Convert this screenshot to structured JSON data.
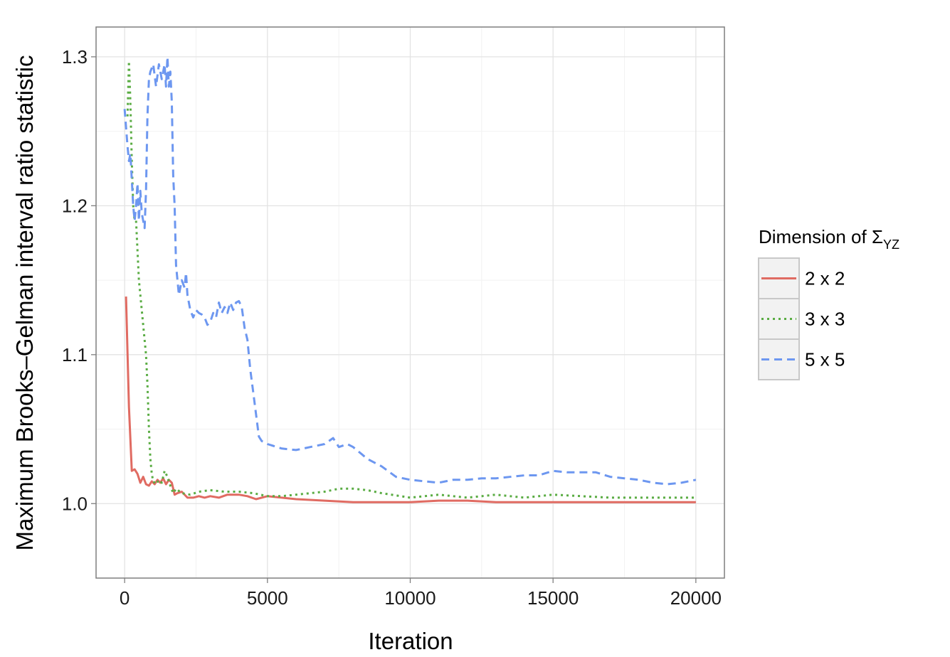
{
  "chart_data": {
    "type": "line",
    "title": "",
    "xlabel": "Iteration",
    "ylabel": "Maximum Brooks–Gelman interval ratio statistic",
    "xlim": [
      -1000,
      21000
    ],
    "ylim": [
      0.95,
      1.32
    ],
    "x_ticks": [
      0,
      5000,
      10000,
      15000,
      20000
    ],
    "x_tick_labels": [
      "0",
      "5000",
      "10000",
      "15000",
      "20000"
    ],
    "y_ticks": [
      1.0,
      1.1,
      1.2,
      1.3
    ],
    "y_tick_labels": [
      "1.0",
      "1.1",
      "1.2",
      "1.3"
    ],
    "grid": true,
    "legend": {
      "title_main": "Dimension of Σ",
      "title_sub": "YZ",
      "placement": "right"
    },
    "series": [
      {
        "name": "2 x 2",
        "color": "#e06b62",
        "dash": "solid",
        "x": [
          50,
          150,
          250,
          350,
          450,
          550,
          650,
          750,
          850,
          950,
          1050,
          1150,
          1250,
          1350,
          1450,
          1550,
          1650,
          1750,
          1850,
          2000,
          2200,
          2400,
          2600,
          2800,
          3000,
          3300,
          3600,
          4000,
          4300,
          4600,
          5000,
          5500,
          6000,
          7000,
          8000,
          9000,
          10000,
          11000,
          12000,
          13000,
          14000,
          15000,
          16000,
          17000,
          18000,
          19000,
          20000
        ],
        "y": [
          1.139,
          1.065,
          1.022,
          1.023,
          1.02,
          1.014,
          1.018,
          1.013,
          1.012,
          1.015,
          1.013,
          1.016,
          1.014,
          1.017,
          1.013,
          1.016,
          1.014,
          1.006,
          1.007,
          1.008,
          1.004,
          1.004,
          1.005,
          1.004,
          1.005,
          1.004,
          1.006,
          1.006,
          1.005,
          1.003,
          1.005,
          1.004,
          1.003,
          1.002,
          1.001,
          1.001,
          1.001,
          1.002,
          1.002,
          1.001,
          1.001,
          1.001,
          1.001,
          1.001,
          1.001,
          1.001,
          1.001
        ]
      },
      {
        "name": "3 x 3",
        "color": "#5aac43",
        "dash": "dotted",
        "x": [
          100,
          150,
          200,
          250,
          300,
          350,
          400,
          450,
          500,
          550,
          600,
          650,
          700,
          750,
          800,
          850,
          900,
          950,
          1000,
          1100,
          1200,
          1300,
          1400,
          1500,
          1600,
          1700,
          1800,
          2000,
          2300,
          2600,
          3000,
          3500,
          4000,
          4500,
          5000,
          5500,
          6000,
          6500,
          7000,
          7500,
          8000,
          8500,
          9000,
          10000,
          11000,
          12000,
          13000,
          14000,
          15000,
          16000,
          17000,
          18000,
          19000,
          20000
        ],
        "y": [
          1.26,
          1.297,
          1.27,
          1.23,
          1.2,
          1.19,
          1.19,
          1.17,
          1.15,
          1.14,
          1.13,
          1.12,
          1.11,
          1.1,
          1.08,
          1.05,
          1.03,
          1.02,
          1.015,
          1.013,
          1.016,
          1.014,
          1.022,
          1.018,
          1.012,
          1.007,
          1.01,
          1.007,
          1.006,
          1.008,
          1.009,
          1.008,
          1.008,
          1.007,
          1.005,
          1.005,
          1.006,
          1.007,
          1.008,
          1.01,
          1.01,
          1.009,
          1.007,
          1.004,
          1.006,
          1.004,
          1.006,
          1.004,
          1.006,
          1.005,
          1.004,
          1.004,
          1.004,
          1.004
        ]
      },
      {
        "name": "5 x 5",
        "color": "#6d97f0",
        "dash": "dashed",
        "x": [
          0,
          100,
          150,
          200,
          300,
          350,
          400,
          450,
          500,
          550,
          600,
          700,
          750,
          800,
          850,
          900,
          1000,
          1100,
          1200,
          1300,
          1400,
          1450,
          1500,
          1550,
          1600,
          1650,
          1700,
          1750,
          1800,
          1850,
          1900,
          2000,
          2100,
          2150,
          2200,
          2300,
          2400,
          2500,
          2600,
          2700,
          2800,
          2900,
          3000,
          3100,
          3200,
          3300,
          3400,
          3500,
          3600,
          3700,
          3800,
          3900,
          4000,
          4100,
          4200,
          4300,
          4400,
          4500,
          4600,
          4700,
          4800,
          5000,
          5500,
          6000,
          6500,
          7000,
          7300,
          7500,
          7800,
          8000,
          8500,
          9000,
          9500,
          10000,
          10500,
          11000,
          11500,
          12000,
          12500,
          13000,
          14000,
          14500,
          15000,
          15500,
          16000,
          16500,
          17000,
          17500,
          18000,
          18500,
          19000,
          19500,
          20000
        ],
        "y": [
          1.265,
          1.24,
          1.23,
          1.235,
          1.2,
          1.19,
          1.2,
          1.215,
          1.19,
          1.21,
          1.195,
          1.185,
          1.21,
          1.26,
          1.285,
          1.29,
          1.295,
          1.28,
          1.295,
          1.285,
          1.295,
          1.28,
          1.3,
          1.28,
          1.29,
          1.27,
          1.22,
          1.2,
          1.16,
          1.15,
          1.14,
          1.15,
          1.145,
          1.155,
          1.14,
          1.13,
          1.125,
          1.13,
          1.128,
          1.127,
          1.125,
          1.12,
          1.122,
          1.128,
          1.125,
          1.135,
          1.128,
          1.132,
          1.128,
          1.135,
          1.13,
          1.135,
          1.136,
          1.132,
          1.118,
          1.11,
          1.09,
          1.075,
          1.06,
          1.045,
          1.042,
          1.04,
          1.037,
          1.036,
          1.038,
          1.04,
          1.044,
          1.038,
          1.04,
          1.038,
          1.03,
          1.025,
          1.018,
          1.016,
          1.015,
          1.014,
          1.016,
          1.016,
          1.017,
          1.017,
          1.019,
          1.019,
          1.022,
          1.021,
          1.021,
          1.021,
          1.018,
          1.017,
          1.016,
          1.014,
          1.013,
          1.014,
          1.016
        ]
      }
    ]
  }
}
